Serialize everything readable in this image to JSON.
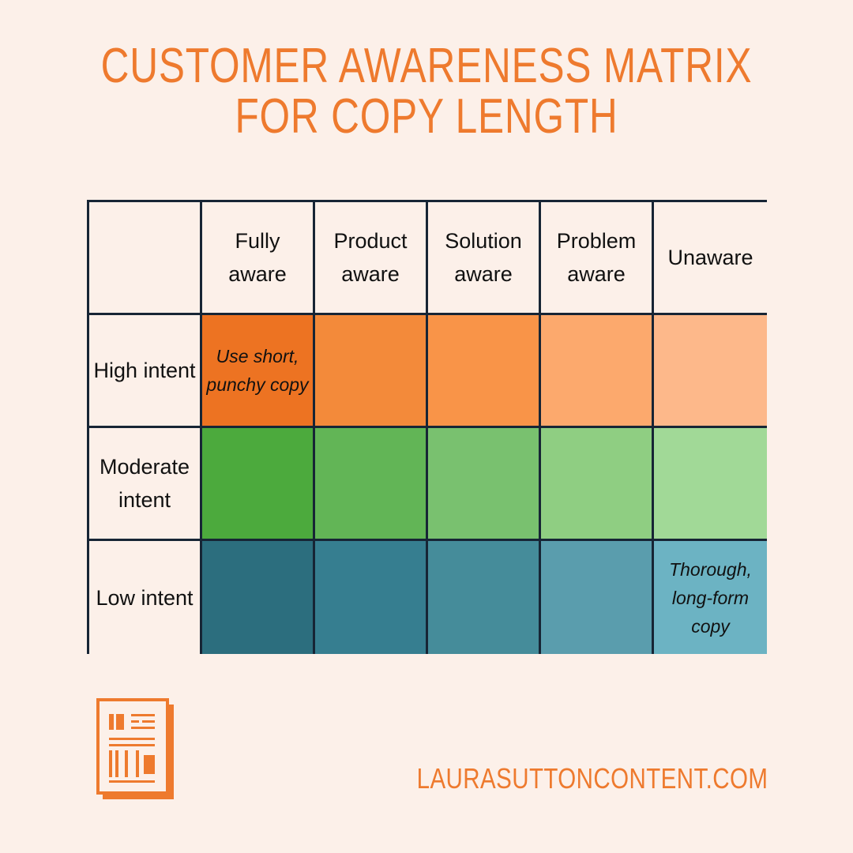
{
  "title": {
    "line1": "CUSTOMER AWARENESS MATRIX",
    "line2": "FOR COPY LENGTH"
  },
  "columns": [
    "Fully aware",
    "Product aware",
    "Solution aware",
    "Problem aware",
    "Unaware"
  ],
  "rows": [
    {
      "label": "High intent",
      "colors": [
        "#ed7322",
        "#f38a3a",
        "#f99448",
        "#fca96d",
        "#fdb88a"
      ],
      "notes": {
        "0": "Use short, punchy copy"
      }
    },
    {
      "label": "Moderate intent",
      "colors": [
        "#4caa3d",
        "#62b556",
        "#79c16f",
        "#8fce82",
        "#a1d997"
      ],
      "notes": {}
    },
    {
      "label": "Low intent",
      "colors": [
        "#2c6e7e",
        "#367e90",
        "#458c9a",
        "#5a9dad",
        "#6cb3c3"
      ],
      "notes": {
        "4": "Thorough, long-form copy"
      }
    }
  ],
  "footer": {
    "url": "LAURASUTTONCONTENT.COM"
  },
  "colors": {
    "background": "#fcf0e9",
    "accent": "#ee7a2e",
    "grid": "#172535"
  },
  "logo": {
    "icon": "document-layout-icon"
  }
}
